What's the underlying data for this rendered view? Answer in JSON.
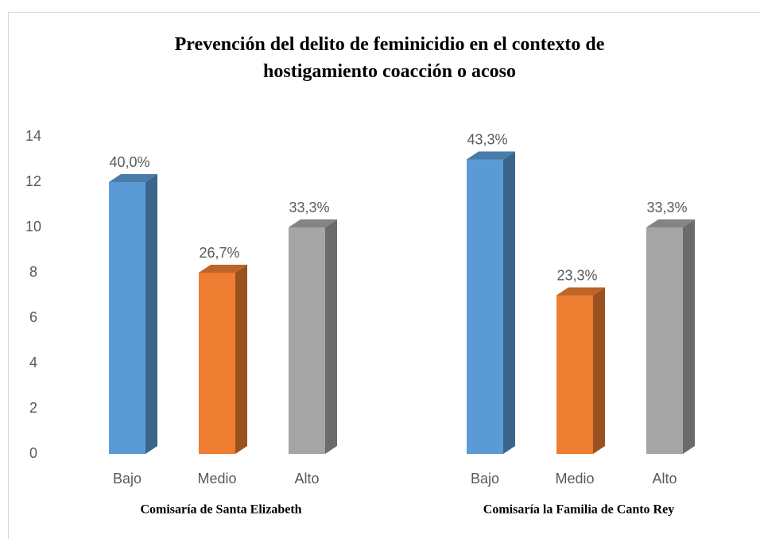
{
  "chart_data": {
    "type": "bar3d",
    "title": "Prevención del delito de feminicidio en el contexto de hostigamiento coacción o acoso",
    "categories": [
      "Bajo",
      "Medio",
      "Alto"
    ],
    "colors": [
      "#5b9bd5",
      "#ed7d31",
      "#a5a5a5"
    ],
    "series": [
      {
        "name": "Comisaría de Santa Elizabeth",
        "values": [
          12,
          8,
          10
        ],
        "value_labels": [
          "40,0%",
          "26,7%",
          "33,3%"
        ]
      },
      {
        "name": "Comisaría la Familia de Canto Rey",
        "values": [
          13,
          7,
          10
        ],
        "value_labels": [
          "43,3%",
          "23,3%",
          "33,3%"
        ]
      }
    ],
    "ylim": [
      0,
      14
    ],
    "yticks": [
      0,
      2,
      4,
      6,
      8,
      10,
      12,
      14
    ],
    "grid": false
  }
}
